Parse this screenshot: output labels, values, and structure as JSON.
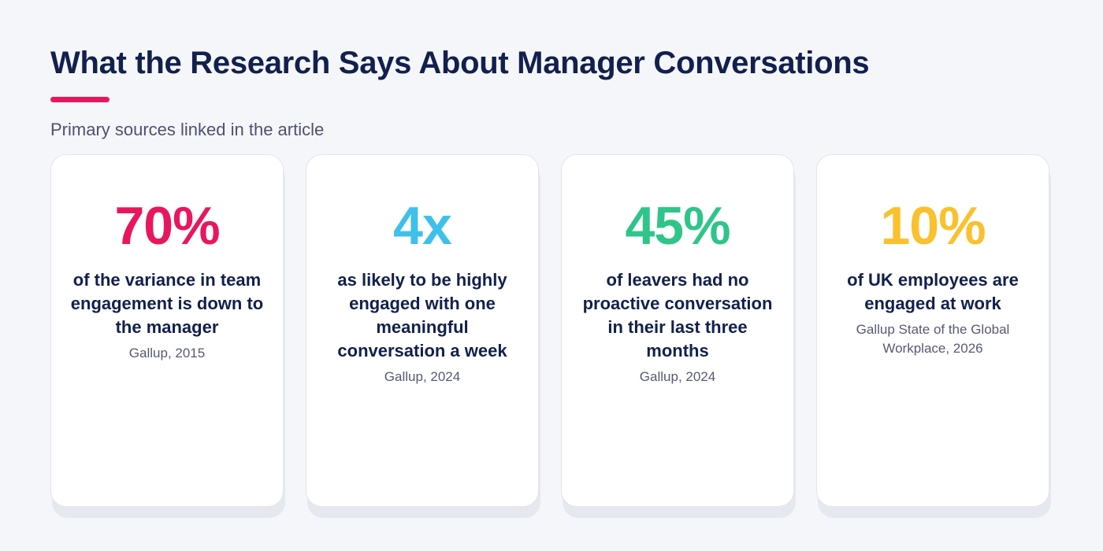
{
  "header": {
    "title": "What the Research Says About Manager Conversations",
    "subtitle": "Primary sources linked in the article",
    "accent_color": "#e8175d"
  },
  "cards": [
    {
      "value": "70%",
      "description": "of the variance in team engagement is down to the manager",
      "source": "Gallup, 2015",
      "color": "#e8175d"
    },
    {
      "value": "4x",
      "description": "as likely to be highly engaged with one meaningful conversation a week",
      "source": "Gallup, 2024",
      "color": "#3ec0ea"
    },
    {
      "value": "45%",
      "description": "of leavers had no proactive conversation in their last three months",
      "source": "Gallup, 2024",
      "color": "#2fc58a"
    },
    {
      "value": "10%",
      "description": "of UK employees are engaged at work",
      "source": "Gallup State of the Global Workplace, 2026",
      "color": "#fbc02d"
    }
  ]
}
